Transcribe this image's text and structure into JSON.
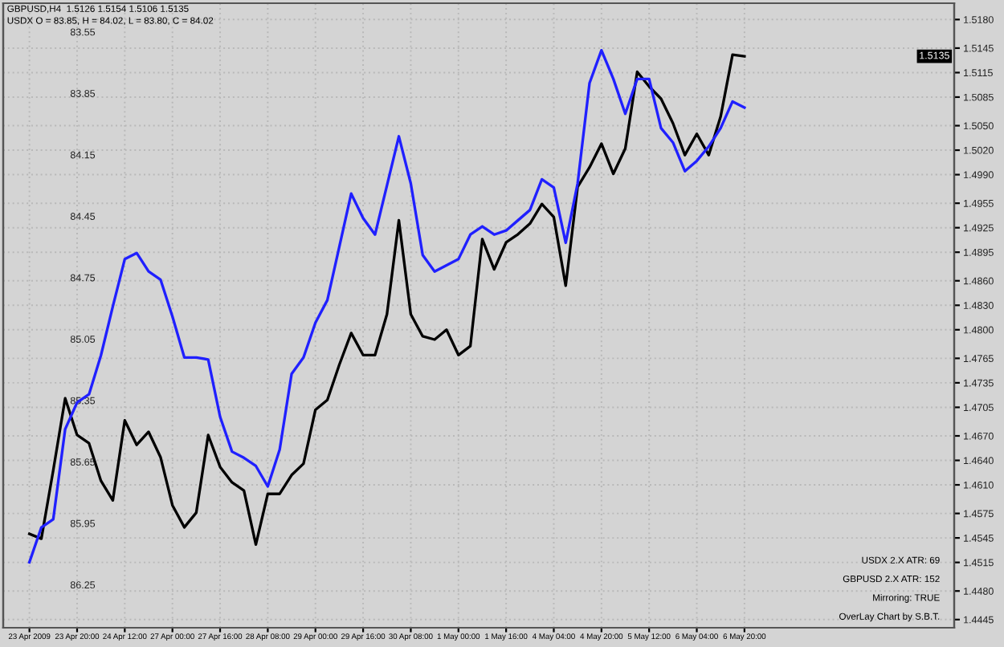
{
  "chart_data": {
    "type": "line",
    "title": "GBPUSD,H4  1.5126 1.5154 1.5106 1.5135",
    "subtitle": "USDX O = 83.85, H = 84.02, L = 83.80, C = 84.02",
    "categories": [
      "23 Apr 2009",
      null,
      null,
      null,
      "23 Apr 20:00",
      null,
      null,
      null,
      "24 Apr 12:00",
      null,
      null,
      null,
      "27 Apr 00:00",
      null,
      null,
      null,
      "27 Apr 16:00",
      null,
      null,
      null,
      "28 Apr 08:00",
      null,
      null,
      null,
      "29 Apr 00:00",
      null,
      null,
      null,
      "29 Apr 16:00",
      null,
      null,
      null,
      "30 Apr 08:00",
      null,
      null,
      null,
      "1 May 00:00",
      null,
      null,
      null,
      "1 May 16:00",
      null,
      null,
      null,
      "4 May 04:00",
      null,
      null,
      null,
      "4 May 20:00",
      null,
      null,
      null,
      "5 May 12:00",
      null,
      null,
      null,
      "6 May 04:00",
      null,
      null,
      null,
      "6 May 20:00",
      null,
      null,
      null,
      null,
      null,
      null,
      null,
      null,
      null,
      null,
      null,
      null,
      null,
      null,
      null,
      null,
      null
    ],
    "series": [
      {
        "color": "#2020ff",
        "axis": "y2",
        "values": [
          86.14,
          85.97,
          85.93,
          85.49,
          85.36,
          85.32,
          85.13,
          84.89,
          84.66,
          84.63,
          84.72,
          84.76,
          84.94,
          85.14,
          85.14,
          85.15,
          85.43,
          85.6,
          85.63,
          85.67,
          85.77,
          85.59,
          85.22,
          85.14,
          84.97,
          84.86,
          84.6,
          84.34,
          84.46,
          84.54,
          84.3,
          84.06,
          84.29,
          84.64,
          84.72,
          84.69,
          84.66,
          84.54,
          84.5,
          84.54,
          84.52,
          84.47,
          84.42,
          84.27,
          84.31,
          84.58,
          84.29,
          83.8,
          83.64,
          83.78,
          83.95,
          83.78,
          83.78,
          84.02,
          84.09,
          84.23,
          84.18,
          84.11,
          84.02,
          83.89,
          83.92,
          null,
          null,
          null,
          null,
          null,
          null,
          null,
          null,
          null,
          null,
          null,
          null,
          null,
          null,
          null,
          null,
          null
        ]
      },
      {
        "color": "#000000",
        "values": [
          1.455,
          1.4544,
          1.4628,
          1.4716,
          1.4671,
          1.4661,
          1.4615,
          1.4591,
          1.4689,
          1.4659,
          1.4675,
          1.4644,
          1.4585,
          1.4558,
          1.4576,
          1.4671,
          1.4632,
          1.4613,
          1.4603,
          1.4537,
          1.4599,
          1.4599,
          1.4622,
          1.4636,
          1.4702,
          1.4714,
          1.4757,
          1.4796,
          1.4769,
          1.4769,
          1.4819,
          1.4934,
          1.4819,
          1.4792,
          1.4788,
          1.48,
          1.4769,
          1.478,
          1.4911,
          1.4874,
          1.4907,
          1.4917,
          1.493,
          1.4954,
          1.4938,
          1.4854,
          1.4975,
          1.4999,
          1.5028,
          1.4991,
          1.5022,
          1.5116,
          1.5098,
          1.5083,
          1.5053,
          1.5014,
          1.504,
          1.5014,
          1.5061,
          1.5137,
          1.5135,
          null,
          null,
          null,
          null,
          null,
          null,
          null,
          null,
          null,
          null,
          null,
          null,
          null,
          null,
          null,
          null,
          null
        ]
      }
    ],
    "ylim": [
      1.4435,
      1.52
    ],
    "yticks": [
      {
        "value": 1.518,
        "label": "1.5180"
      },
      {
        "value": 1.5145,
        "label": "1.5145"
      },
      {
        "value": 1.5115,
        "label": "1.5115"
      },
      {
        "value": 1.5085,
        "label": "1.5085"
      },
      {
        "value": 1.505,
        "label": "1.5050"
      },
      {
        "value": 1.502,
        "label": "1.5020"
      },
      {
        "value": 1.499,
        "label": "1.4990"
      },
      {
        "value": 1.4955,
        "label": "1.4955"
      },
      {
        "value": 1.4925,
        "label": "1.4925"
      },
      {
        "value": 1.4895,
        "label": "1.4895"
      },
      {
        "value": 1.486,
        "label": "1.4860"
      },
      {
        "value": 1.483,
        "label": "1.4830"
      },
      {
        "value": 1.48,
        "label": "1.4800"
      },
      {
        "value": 1.4765,
        "label": "1.4765"
      },
      {
        "value": 1.4735,
        "label": "1.4735"
      },
      {
        "value": 1.4705,
        "label": "1.4705"
      },
      {
        "value": 1.467,
        "label": "1.4670"
      },
      {
        "value": 1.464,
        "label": "1.4640"
      },
      {
        "value": 1.461,
        "label": "1.4610"
      },
      {
        "value": 1.4575,
        "label": "1.4575"
      },
      {
        "value": 1.4545,
        "label": "1.4545"
      },
      {
        "value": 1.4515,
        "label": "1.4515"
      },
      {
        "value": 1.448,
        "label": "1.4480"
      },
      {
        "value": 1.4445,
        "label": "1.4445"
      }
    ],
    "y2lim": [
      86.46,
      83.41
    ],
    "y2ticks": [
      83.55,
      83.85,
      84.15,
      84.45,
      84.75,
      85.05,
      85.35,
      85.65,
      85.95,
      86.25
    ],
    "grid": true,
    "line_style": "solid",
    "annotations": [
      "USDX 2.X ATR: 69",
      "GBPUSD 2.X ATR: 152",
      "Mirroring: TRUE",
      "OverLay Chart by S.B.T.",
      "1.5135"
    ]
  }
}
